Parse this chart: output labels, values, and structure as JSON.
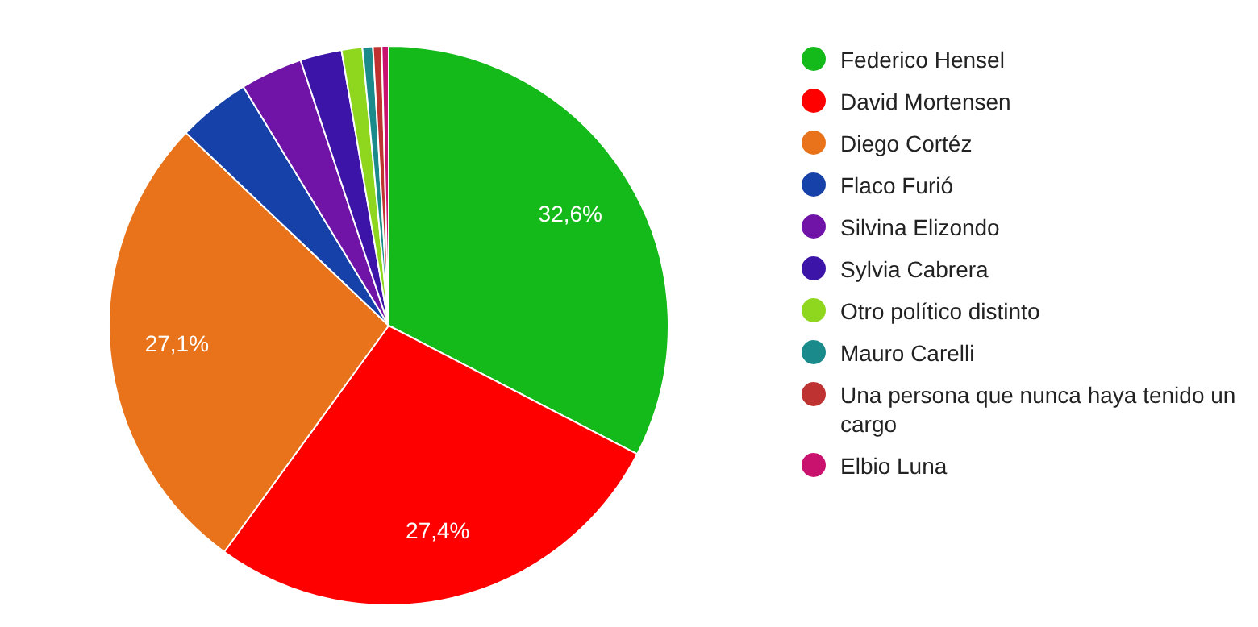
{
  "chart_data": {
    "type": "pie",
    "categories": [
      "Federico Hensel",
      "David Mortensen",
      "Diego Cortéz",
      "Flaco Furió",
      "Silvina Elizondo",
      "Sylvia Cabrera",
      "Otro político distinto",
      "Mauro Carelli",
      "Una persona que nunca haya tenido un cargo",
      "Elbio Luna"
    ],
    "values": [
      32.6,
      27.4,
      27.1,
      4.2,
      3.6,
      2.4,
      1.2,
      0.6,
      0.5,
      0.4
    ],
    "colors": [
      "#14b91a",
      "#ff0000",
      "#e8731a",
      "#1541a8",
      "#7014a8",
      "#3c14a8",
      "#8fd61e",
      "#1a8a8a",
      "#bf3232",
      "#c8126e"
    ],
    "value_labels": [
      "32,6%",
      "27,4%",
      "27,1%",
      null,
      null,
      null,
      null,
      null,
      null,
      null
    ],
    "legend": "right"
  }
}
